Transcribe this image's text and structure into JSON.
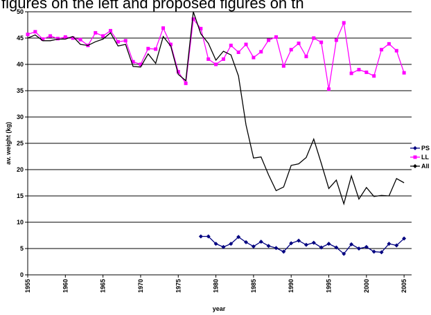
{
  "chart_data": {
    "type": "line",
    "title": "figures on the left and proposed figures on th",
    "x_label": "year",
    "y_label": "av. weight (kg)",
    "x": [
      1955,
      1956,
      1957,
      1958,
      1959,
      1960,
      1961,
      1962,
      1963,
      1964,
      1965,
      1966,
      1967,
      1968,
      1969,
      1970,
      1971,
      1972,
      1973,
      1974,
      1975,
      1976,
      1977,
      1978,
      1979,
      1980,
      1981,
      1982,
      1983,
      1984,
      1985,
      1986,
      1987,
      1988,
      1989,
      1990,
      1991,
      1992,
      1993,
      1994,
      1995,
      1996,
      1997,
      1998,
      1999,
      2000,
      2001,
      2002,
      2003,
      2004,
      2005
    ],
    "series": [
      {
        "name": "PS",
        "color": "#000080",
        "marker": "diamond",
        "values": [
          null,
          null,
          null,
          null,
          null,
          null,
          null,
          null,
          null,
          null,
          null,
          null,
          null,
          null,
          null,
          null,
          null,
          null,
          null,
          null,
          null,
          null,
          null,
          7.3,
          7.3,
          5.9,
          5.3,
          5.9,
          7.2,
          6.2,
          5.4,
          6.3,
          5.5,
          5.1,
          4.4,
          6.0,
          6.5,
          5.7,
          6.1,
          5.2,
          5.9,
          5.2,
          4.0,
          5.8,
          5.0,
          5.3,
          4.4,
          4.3,
          5.9,
          5.6,
          6.9
        ]
      },
      {
        "name": "LL",
        "color": "#ff00ff",
        "marker": "square",
        "values": [
          45.7,
          46.2,
          44.8,
          45.4,
          44.9,
          45.2,
          45.0,
          44.7,
          43.6,
          46.0,
          45.4,
          46.4,
          44.3,
          44.5,
          40.5,
          40.0,
          43.0,
          42.9,
          46.9,
          43.8,
          38.6,
          36.4,
          48.6,
          46.8,
          41.0,
          40.0,
          41.0,
          43.6,
          42.3,
          43.8,
          41.3,
          42.4,
          44.6,
          45.2,
          39.7,
          42.8,
          44.0,
          41.5,
          45.0,
          44.2,
          35.3,
          44.6,
          47.9,
          38.3,
          39.0,
          38.5,
          37.8,
          42.8,
          43.9,
          42.6,
          38.4
        ]
      },
      {
        "name": "All",
        "color": "#000000",
        "marker": "none",
        "values": [
          45.0,
          45.6,
          44.5,
          44.5,
          44.8,
          44.8,
          45.3,
          43.8,
          43.6,
          44.3,
          44.8,
          46.0,
          43.5,
          43.8,
          39.6,
          39.5,
          42.0,
          40.2,
          45.3,
          43.5,
          38.1,
          36.9,
          50.0,
          45.8,
          44.0,
          40.8,
          42.5,
          41.8,
          37.8,
          28.5,
          22.2,
          22.4,
          19.0,
          16.0,
          16.7,
          20.8,
          21.1,
          22.3,
          25.8,
          21.2,
          16.4,
          18.0,
          13.5,
          18.8,
          14.4,
          16.6,
          14.9,
          15.1,
          15.0,
          18.3,
          17.5
        ]
      }
    ],
    "xlim": [
      1955,
      2006
    ],
    "xticks": [
      1955,
      1960,
      1965,
      1970,
      1975,
      1980,
      1985,
      1990,
      1995,
      2000,
      2005
    ],
    "ylim": [
      0,
      50
    ],
    "yticks": [
      0,
      5,
      10,
      15,
      20,
      25,
      30,
      35,
      40,
      45,
      50
    ],
    "grid": true,
    "legend": "right"
  }
}
